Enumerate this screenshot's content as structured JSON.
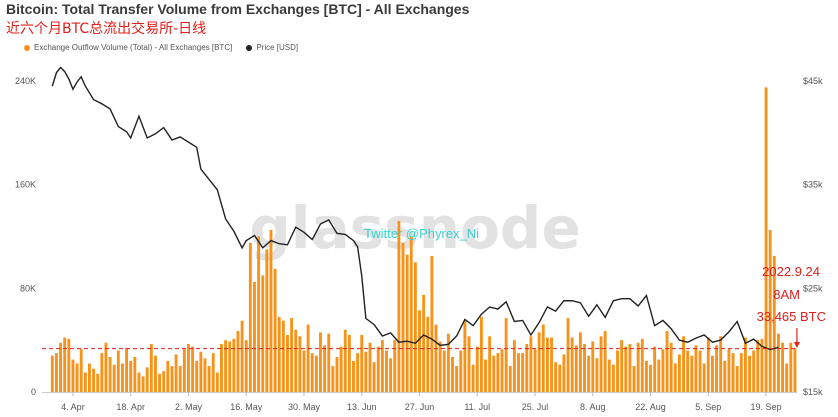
{
  "chart_data": {
    "type": "bar",
    "title": "Bitcoin: Total Transfer Volume from Exchanges [BTC] - All Exchanges",
    "subtitle": "近六个月BTC总流出交易所-日线",
    "legend": [
      {
        "name": "Exchange Outflow Volume (Total) - All Exchanges [BTC]",
        "color": "#f7931a"
      },
      {
        "name": "Price [USD]",
        "color": "#222222"
      }
    ],
    "y_left": {
      "ticks": [
        "0",
        "80K",
        "160K",
        "240K"
      ],
      "values": [
        0,
        80000,
        160000,
        240000
      ],
      "range": [
        0,
        260000
      ]
    },
    "y_right": {
      "ticks": [
        "$15k",
        "$25k",
        "$35k",
        "$45k"
      ],
      "values": [
        15000,
        25000,
        35000,
        45000
      ],
      "range": [
        15000,
        47500
      ]
    },
    "x_ticks": [
      "4. Apr",
      "18. Apr",
      "2. May",
      "16. May",
      "30. May",
      "13. Jun",
      "27. Jun",
      "11. Jul",
      "25. Jul",
      "8. Aug",
      "22. Aug",
      "5. Sep",
      "19. Sep"
    ],
    "x_tick_days": [
      5,
      19,
      33,
      47,
      61,
      75,
      89,
      103,
      117,
      131,
      145,
      159,
      173
    ],
    "x_range": [
      -2.5,
      180.5
    ],
    "series": [
      {
        "name": "Exchange Outflow Volume (Total) - All Exchanges [BTC]",
        "type": "bar",
        "color": "#f7931a",
        "values": [
          28000,
          30000,
          38000,
          42000,
          41000,
          25000,
          22000,
          33000,
          15000,
          22000,
          18000,
          14000,
          30000,
          38000,
          27000,
          21000,
          32000,
          22000,
          34000,
          24000,
          27000,
          15000,
          12000,
          19000,
          37000,
          28000,
          14000,
          16000,
          24000,
          20000,
          29000,
          20000,
          33000,
          37000,
          35000,
          24000,
          31000,
          26000,
          20000,
          30000,
          15000,
          37000,
          40000,
          39000,
          41000,
          47000,
          55000,
          40000,
          115000,
          85000,
          120000,
          90000,
          110000,
          125000,
          95000,
          58000,
          55000,
          44000,
          57000,
          48000,
          43000,
          32000,
          52000,
          30000,
          28000,
          46000,
          36000,
          45000,
          20000,
          27000,
          35000,
          48000,
          44000,
          24000,
          30000,
          44000,
          31000,
          38000,
          23000,
          35000,
          40000,
          32000,
          26000,
          40000,
          132000,
          115000,
          106000,
          120000,
          100000,
          63000,
          75000,
          58000,
          105000,
          52000,
          39000,
          32000,
          45000,
          27000,
          20000,
          32000,
          55000,
          43000,
          21000,
          35000,
          58000,
          25000,
          43000,
          28000,
          30000,
          33000,
          57000,
          20000,
          40000,
          30000,
          30000,
          37000,
          43000,
          33000,
          46000,
          52000,
          42000,
          42000,
          23000,
          21000,
          29000,
          57000,
          42000,
          36000,
          46000,
          37000,
          28000,
          39000,
          26000,
          43000,
          47000,
          25000,
          21000,
          32000,
          40000,
          35000,
          37000,
          20000,
          38000,
          41000,
          24000,
          21000,
          35000,
          25000,
          33000,
          47000,
          38000,
          22000,
          29000,
          43000,
          32000,
          28000,
          36000,
          32000,
          22000,
          42000,
          28000,
          36000,
          43000,
          24000,
          33000,
          30000,
          20000,
          30000,
          42000,
          28000,
          32000,
          40000,
          41000,
          235000,
          125000,
          105000,
          45000,
          38000,
          22000,
          38000,
          33465
        ]
      },
      {
        "name": "Price [USD]",
        "type": "line",
        "color": "#222222",
        "x": [
          0,
          1,
          2,
          3,
          4,
          5,
          6,
          7,
          8,
          10,
          12,
          14,
          16,
          18,
          19,
          21,
          23,
          25,
          27,
          29,
          31,
          33,
          35,
          36,
          38,
          40,
          42,
          44,
          46,
          47,
          49,
          51,
          53,
          55,
          57,
          59,
          61,
          63,
          65,
          67,
          69,
          71,
          73,
          74,
          75,
          76,
          78,
          80,
          82,
          84,
          86,
          88,
          90,
          92,
          94,
          96,
          98,
          100,
          102,
          104,
          106,
          108,
          110,
          112,
          114,
          116,
          118,
          120,
          122,
          124,
          126,
          128,
          130,
          132,
          134,
          136,
          138,
          140,
          142,
          144,
          146,
          148,
          150,
          152,
          154,
          156,
          158,
          160,
          162,
          164,
          166,
          168,
          170,
          172,
          174,
          176
        ],
        "values": [
          44500,
          45800,
          46300,
          45900,
          45200,
          44200,
          44900,
          45400,
          44500,
          43200,
          42800,
          42300,
          40600,
          40100,
          39500,
          41600,
          39500,
          39900,
          40500,
          39300,
          39600,
          39100,
          38600,
          36500,
          35500,
          34500,
          31700,
          30500,
          28900,
          29600,
          30100,
          28900,
          29600,
          29300,
          29200,
          30900,
          30400,
          29700,
          31200,
          31600,
          30300,
          30200,
          29600,
          29000,
          26200,
          22100,
          21500,
          20400,
          20700,
          19800,
          19900,
          19700,
          20500,
          20100,
          19500,
          19600,
          20400,
          22000,
          21400,
          22500,
          23200,
          23000,
          23700,
          21800,
          21900,
          20500,
          21700,
          23200,
          22800,
          23800,
          23800,
          23600,
          22300,
          23400,
          22200,
          23800,
          24000,
          24000,
          23300,
          24300,
          21400,
          21900,
          21100,
          20000,
          19800,
          20200,
          20500,
          19800,
          20000,
          20800,
          21800,
          19700,
          20100,
          19400,
          19100,
          19300
        ]
      }
    ],
    "annotations": {
      "date": "2022.9.24",
      "time": "8AM",
      "value": "33,465 BTC",
      "reference_line": 33465
    },
    "watermark": "glassnode",
    "twitter": "Twitter @Phyrex_Ni"
  }
}
